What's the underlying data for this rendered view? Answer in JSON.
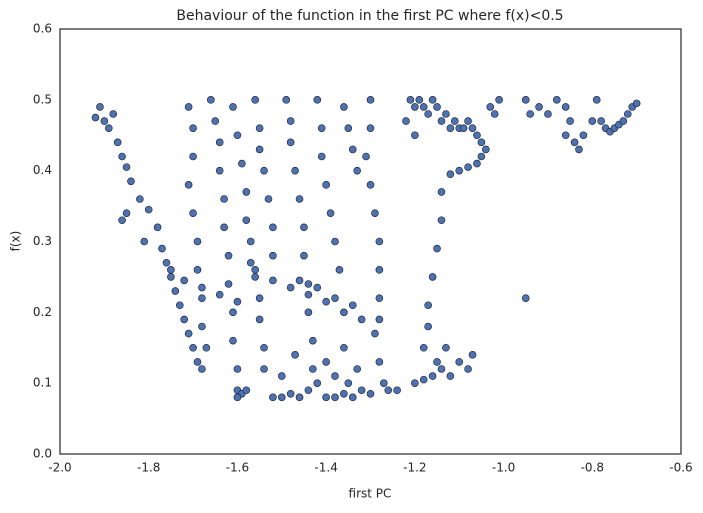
{
  "chart_data": {
    "type": "scatter",
    "title": "Behaviour of the function in the first PC where f(x)<0.5",
    "x_label": "first PC",
    "y_label": "f(x)",
    "color": "#4c72b0",
    "edge_color": "#1a1a2e",
    "xlim": [
      -2.0,
      -0.6
    ],
    "ylim": [
      0.0,
      0.6
    ],
    "xticks": [
      {
        "value": -2.0,
        "label": "-2.0"
      },
      -1.8,
      -1.6,
      -1.4,
      -1.2,
      {
        "value": -1.0,
        "label": "-1.0"
      },
      -0.8,
      -0.6
    ],
    "yticks": [
      {
        "value": 0.0,
        "label": "0.0"
      },
      0.1,
      0.2,
      0.3,
      0.4,
      0.5,
      0.6
    ],
    "grid": false,
    "x": [
      -1.92,
      -1.91,
      -1.9,
      -1.89,
      -1.88,
      -1.87,
      -1.86,
      -1.85,
      -1.84,
      -1.85,
      -1.86,
      -1.82,
      -1.8,
      -1.81,
      -1.78,
      -1.77,
      -1.76,
      -1.75,
      -1.74,
      -1.73,
      -1.72,
      -1.71,
      -1.7,
      -1.69,
      -1.68,
      -1.71,
      -1.7,
      -1.7,
      -1.71,
      -1.7,
      -1.69,
      -1.69,
      -1.68,
      -1.68,
      -1.67,
      -1.66,
      -1.65,
      -1.64,
      -1.64,
      -1.63,
      -1.63,
      -1.62,
      -1.62,
      -1.61,
      -1.61,
      -1.6,
      -1.6,
      -1.59,
      -1.61,
      -1.6,
      -1.59,
      -1.58,
      -1.58,
      -1.57,
      -1.57,
      -1.56,
      -1.55,
      -1.55,
      -1.54,
      -1.54,
      -1.56,
      -1.55,
      -1.55,
      -1.54,
      -1.53,
      -1.52,
      -1.52,
      -1.49,
      -1.48,
      -1.48,
      -1.47,
      -1.46,
      -1.45,
      -1.45,
      -1.44,
      -1.44,
      -1.43,
      -1.43,
      -1.42,
      -1.42,
      -1.41,
      -1.41,
      -1.4,
      -1.39,
      -1.38,
      -1.37,
      -1.36,
      -1.35,
      -1.34,
      -1.33,
      -1.3,
      -1.3,
      -1.31,
      -1.3,
      -1.29,
      -1.28,
      -1.28,
      -1.28,
      -1.28,
      -1.29,
      -1.28,
      -1.27,
      -1.26,
      -1.24,
      -1.75,
      -1.72,
      -1.68,
      -1.64,
      -1.6,
      -1.56,
      -1.52,
      -1.48,
      -1.44,
      -1.4,
      -1.36,
      -1.46,
      -1.42,
      -1.38,
      -1.34,
      -1.32,
      -1.6,
      -1.58,
      -1.52,
      -1.5,
      -1.48,
      -1.46,
      -1.44,
      -1.4,
      -1.38,
      -1.36,
      -1.34,
      -1.32,
      -1.3,
      -1.38,
      -1.35,
      -1.33,
      -1.5,
      -1.47,
      -1.4,
      -1.36,
      -1.21,
      -1.2,
      -1.19,
      -1.18,
      -1.17,
      -1.16,
      -1.15,
      -1.14,
      -1.13,
      -1.12,
      -1.11,
      -1.1,
      -1.09,
      -1.08,
      -1.07,
      -1.06,
      -1.05,
      -1.04,
      -1.05,
      -1.06,
      -1.08,
      -1.1,
      -1.12,
      -1.2,
      -1.22,
      -1.03,
      -1.02,
      -1.01,
      -1.14,
      -1.14,
      -1.15,
      -1.16,
      -1.17,
      -1.17,
      -1.18,
      -1.2,
      -1.18,
      -1.16,
      -1.14,
      -1.12,
      -1.1,
      -1.08,
      -1.07,
      -1.15,
      -1.13,
      -0.95,
      -0.94,
      -0.92,
      -0.9,
      -0.88,
      -0.86,
      -0.85,
      -0.84,
      -0.83,
      -0.82,
      -0.8,
      -0.79,
      -0.78,
      -0.77,
      -0.76,
      -0.75,
      -0.74,
      -0.73,
      -0.72,
      -0.71,
      -0.7,
      -0.86,
      -0.95
    ],
    "y": [
      0.475,
      0.49,
      0.47,
      0.46,
      0.48,
      0.44,
      0.42,
      0.405,
      0.385,
      0.34,
      0.33,
      0.36,
      0.345,
      0.3,
      0.32,
      0.29,
      0.27,
      0.25,
      0.23,
      0.21,
      0.19,
      0.17,
      0.15,
      0.13,
      0.12,
      0.49,
      0.46,
      0.42,
      0.38,
      0.34,
      0.3,
      0.26,
      0.22,
      0.18,
      0.15,
      0.5,
      0.47,
      0.44,
      0.4,
      0.36,
      0.32,
      0.28,
      0.24,
      0.2,
      0.16,
      0.12,
      0.09,
      0.085,
      0.49,
      0.45,
      0.41,
      0.37,
      0.33,
      0.3,
      0.27,
      0.25,
      0.22,
      0.19,
      0.15,
      0.12,
      0.5,
      0.46,
      0.43,
      0.4,
      0.36,
      0.32,
      0.28,
      0.5,
      0.47,
      0.44,
      0.4,
      0.36,
      0.32,
      0.28,
      0.24,
      0.2,
      0.16,
      0.12,
      0.1,
      0.5,
      0.46,
      0.42,
      0.38,
      0.34,
      0.3,
      0.26,
      0.49,
      0.46,
      0.43,
      0.4,
      0.5,
      0.46,
      0.42,
      0.38,
      0.34,
      0.3,
      0.26,
      0.22,
      0.19,
      0.17,
      0.13,
      0.1,
      0.09,
      0.09,
      0.26,
      0.245,
      0.235,
      0.225,
      0.215,
      0.26,
      0.245,
      0.235,
      0.225,
      0.215,
      0.2,
      0.245,
      0.235,
      0.22,
      0.21,
      0.19,
      0.08,
      0.09,
      0.08,
      0.08,
      0.085,
      0.08,
      0.09,
      0.08,
      0.08,
      0.085,
      0.08,
      0.09,
      0.085,
      0.11,
      0.1,
      0.12,
      0.11,
      0.14,
      0.13,
      0.15,
      0.5,
      0.49,
      0.5,
      0.49,
      0.48,
      0.5,
      0.49,
      0.47,
      0.48,
      0.46,
      0.47,
      0.46,
      0.46,
      0.47,
      0.46,
      0.45,
      0.44,
      0.43,
      0.42,
      0.41,
      0.405,
      0.4,
      0.395,
      0.45,
      0.47,
      0.49,
      0.48,
      0.5,
      0.37,
      0.33,
      0.29,
      0.25,
      0.21,
      0.18,
      0.15,
      0.1,
      0.105,
      0.11,
      0.12,
      0.11,
      0.13,
      0.12,
      0.14,
      0.13,
      0.15,
      0.5,
      0.48,
      0.49,
      0.48,
      0.5,
      0.49,
      0.47,
      0.44,
      0.43,
      0.45,
      0.47,
      0.5,
      0.47,
      0.46,
      0.455,
      0.46,
      0.465,
      0.47,
      0.48,
      0.49,
      0.495,
      0.45,
      0.22
    ]
  }
}
